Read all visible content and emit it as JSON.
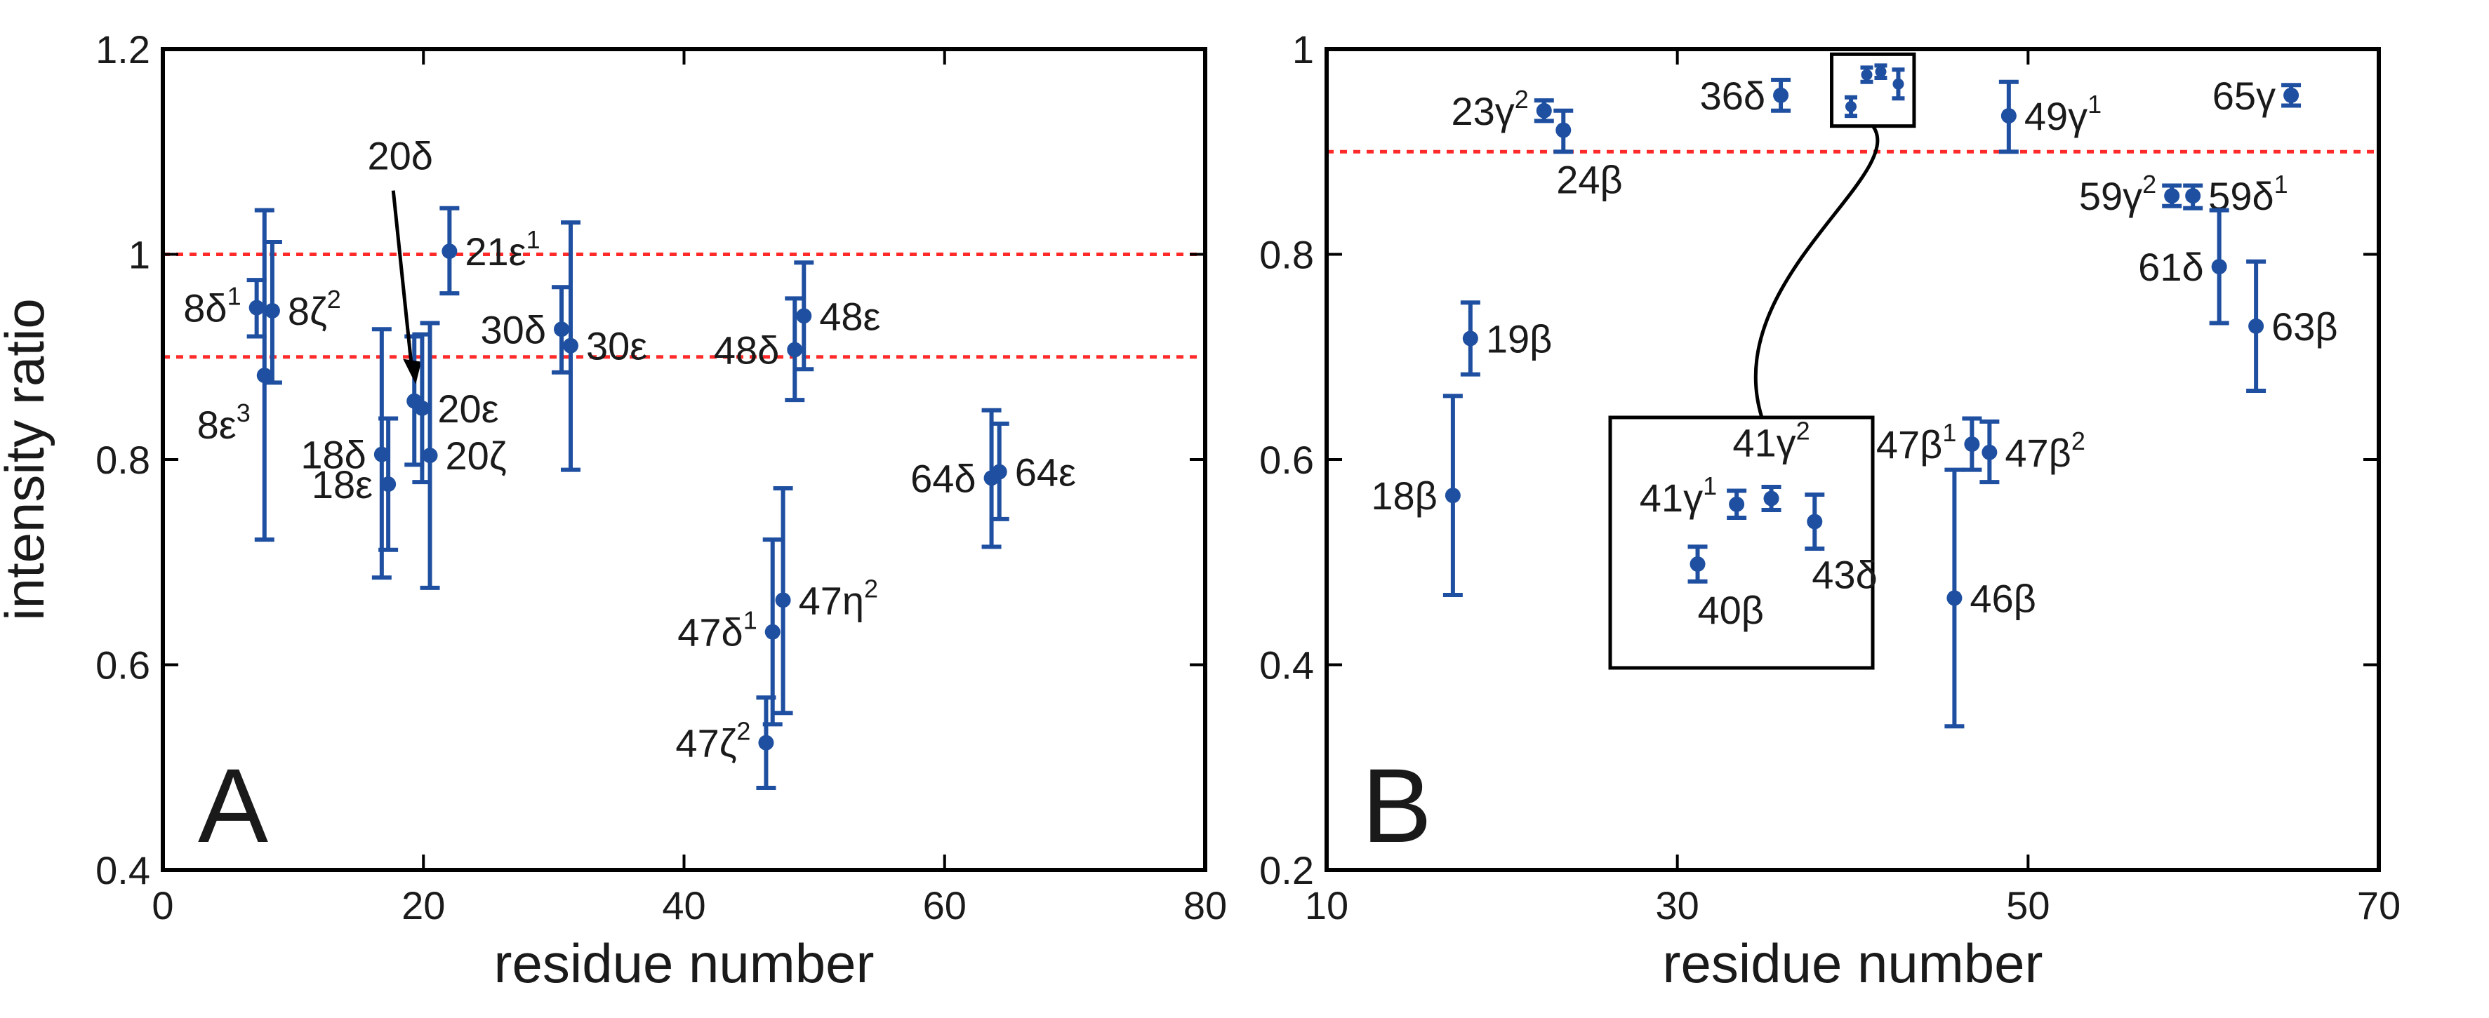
{
  "colors": {
    "series": "#1f4fa0",
    "reference": "#ff2a2a",
    "axis": "#000000"
  },
  "chart_data": [
    {
      "panel": "A",
      "type": "scatter",
      "title": "",
      "panel_label": "A",
      "xlabel": "residue number",
      "ylabel": "intensity ratio",
      "xlim": [
        0,
        80
      ],
      "ylim": [
        0.4,
        1.2
      ],
      "xticks": [
        "0",
        "20",
        "40",
        "60",
        "80"
      ],
      "yticks": [
        "0.4",
        "0.6",
        "0.8",
        "1",
        "1.2"
      ],
      "xtick_values": [
        0,
        20,
        40,
        60,
        80
      ],
      "ytick_values": [
        0.4,
        0.6,
        0.8,
        1.0,
        1.2
      ],
      "reference_lines": [
        1.0,
        0.9
      ],
      "points": [
        {
          "label": "8δ",
          "sup": "1",
          "x": 7.2,
          "y": 0.948,
          "lo": 0.92,
          "hi": 0.975,
          "side": "left"
        },
        {
          "label": "8ζ",
          "sup": "2",
          "x": 8.4,
          "y": 0.945,
          "lo": 0.875,
          "hi": 1.012,
          "side": "right"
        },
        {
          "label": "8ε",
          "sup": "3",
          "x": 7.8,
          "y": 0.882,
          "lo": 0.722,
          "hi": 1.043,
          "side": "below-left"
        },
        {
          "label": "18δ",
          "sup": "",
          "x": 16.8,
          "y": 0.805,
          "lo": 0.685,
          "hi": 0.927,
          "side": "left"
        },
        {
          "label": "18ε",
          "sup": "",
          "x": 17.3,
          "y": 0.776,
          "lo": 0.712,
          "hi": 0.84,
          "side": "left"
        },
        {
          "label": "20δ",
          "sup": "",
          "x": 19.3,
          "y": 0.857,
          "lo": 0.795,
          "hi": 0.92,
          "side": "arrow"
        },
        {
          "label": "20ε",
          "sup": "",
          "x": 19.9,
          "y": 0.85,
          "lo": 0.778,
          "hi": 0.922,
          "side": "right"
        },
        {
          "label": "20ζ",
          "sup": "",
          "x": 20.5,
          "y": 0.804,
          "lo": 0.675,
          "hi": 0.933,
          "side": "right"
        },
        {
          "label": "21ε",
          "sup": "1",
          "x": 22.0,
          "y": 1.003,
          "lo": 0.962,
          "hi": 1.045,
          "side": "right"
        },
        {
          "label": "30δ",
          "sup": "",
          "x": 30.6,
          "y": 0.927,
          "lo": 0.885,
          "hi": 0.968,
          "side": "left"
        },
        {
          "label": "30ε",
          "sup": "",
          "x": 31.3,
          "y": 0.911,
          "lo": 0.79,
          "hi": 1.031,
          "side": "right"
        },
        {
          "label": "48δ",
          "sup": "",
          "x": 48.5,
          "y": 0.907,
          "lo": 0.858,
          "hi": 0.957,
          "side": "left"
        },
        {
          "label": "48ε",
          "sup": "",
          "x": 49.2,
          "y": 0.94,
          "lo": 0.888,
          "hi": 0.992,
          "side": "right"
        },
        {
          "label": "47δ",
          "sup": "1",
          "x": 46.8,
          "y": 0.632,
          "lo": 0.542,
          "hi": 0.722,
          "side": "left"
        },
        {
          "label": "47η",
          "sup": "2",
          "x": 47.6,
          "y": 0.663,
          "lo": 0.553,
          "hi": 0.772,
          "side": "right"
        },
        {
          "label": "47ζ",
          "sup": "2",
          "x": 46.3,
          "y": 0.524,
          "lo": 0.48,
          "hi": 0.568,
          "side": "left"
        },
        {
          "label": "64δ",
          "sup": "",
          "x": 63.6,
          "y": 0.782,
          "lo": 0.715,
          "hi": 0.848,
          "side": "left"
        },
        {
          "label": "64ε",
          "sup": "",
          "x": 64.2,
          "y": 0.788,
          "lo": 0.742,
          "hi": 0.835,
          "side": "right"
        }
      ]
    },
    {
      "panel": "B",
      "type": "scatter",
      "title": "",
      "panel_label": "B",
      "xlabel": "residue number",
      "ylabel": "",
      "xlim": [
        10,
        70
      ],
      "ylim": [
        0.2,
        1.0
      ],
      "xticks": [
        "10",
        "30",
        "50",
        "70"
      ],
      "yticks": [
        "0.2",
        "0.4",
        "0.6",
        "0.8",
        "1"
      ],
      "xtick_values": [
        10,
        30,
        50,
        70
      ],
      "ytick_values": [
        0.2,
        0.4,
        0.6,
        0.8,
        1.0
      ],
      "reference_lines": [
        0.9
      ],
      "points": [
        {
          "label": "23γ",
          "sup": "2",
          "x": 22.4,
          "y": 0.94,
          "lo": 0.93,
          "hi": 0.95,
          "side": "left"
        },
        {
          "label": "24β",
          "sup": "",
          "x": 23.5,
          "y": 0.921,
          "lo": 0.9,
          "hi": 0.94,
          "side": "below"
        },
        {
          "label": "36δ",
          "sup": "",
          "x": 35.9,
          "y": 0.955,
          "lo": 0.94,
          "hi": 0.97,
          "side": "left"
        },
        {
          "label": "49γ",
          "sup": "1",
          "x": 48.9,
          "y": 0.935,
          "lo": 0.9,
          "hi": 0.968,
          "side": "right"
        },
        {
          "label": "65γ",
          "sup": "",
          "x": 65.0,
          "y": 0.955,
          "lo": 0.945,
          "hi": 0.965,
          "side": "left"
        },
        {
          "label": "59γ",
          "sup": "2",
          "x": 58.2,
          "y": 0.857,
          "lo": 0.847,
          "hi": 0.867,
          "side": "left"
        },
        {
          "label": "59δ",
          "sup": "1",
          "x": 59.4,
          "y": 0.857,
          "lo": 0.845,
          "hi": 0.867,
          "side": "right"
        },
        {
          "label": "61δ",
          "sup": "",
          "x": 60.9,
          "y": 0.788,
          "lo": 0.733,
          "hi": 0.843,
          "side": "left"
        },
        {
          "label": "63β",
          "sup": "",
          "x": 63.0,
          "y": 0.73,
          "lo": 0.667,
          "hi": 0.793,
          "side": "right"
        },
        {
          "label": "19β",
          "sup": "",
          "x": 18.2,
          "y": 0.718,
          "lo": 0.683,
          "hi": 0.753,
          "side": "right"
        },
        {
          "label": "18β",
          "sup": "",
          "x": 17.2,
          "y": 0.565,
          "lo": 0.468,
          "hi": 0.662,
          "side": "left"
        },
        {
          "label": "47β",
          "sup": "1",
          "x": 46.8,
          "y": 0.615,
          "lo": 0.59,
          "hi": 0.64,
          "side": "left"
        },
        {
          "label": "47β",
          "sup": "2",
          "x": 47.8,
          "y": 0.607,
          "lo": 0.578,
          "hi": 0.637,
          "side": "right"
        },
        {
          "label": "46β",
          "sup": "",
          "x": 45.8,
          "y": 0.465,
          "lo": 0.34,
          "hi": 0.59,
          "side": "right"
        },
        {
          "label": "40β",
          "sup": "",
          "x": 39.9,
          "y": 0.944,
          "lo": 0.935,
          "hi": 0.953,
          "side": "inset"
        },
        {
          "label": "41γ",
          "sup": "1",
          "x": 40.8,
          "y": 0.975,
          "lo": 0.968,
          "hi": 0.982,
          "side": "inset"
        },
        {
          "label": "41γ",
          "sup": "2",
          "x": 41.6,
          "y": 0.978,
          "lo": 0.972,
          "hi": 0.984,
          "side": "inset"
        },
        {
          "label": "43δ",
          "sup": "",
          "x": 42.6,
          "y": 0.966,
          "lo": 0.952,
          "hi": 0.98,
          "side": "inset"
        }
      ]
    }
  ]
}
